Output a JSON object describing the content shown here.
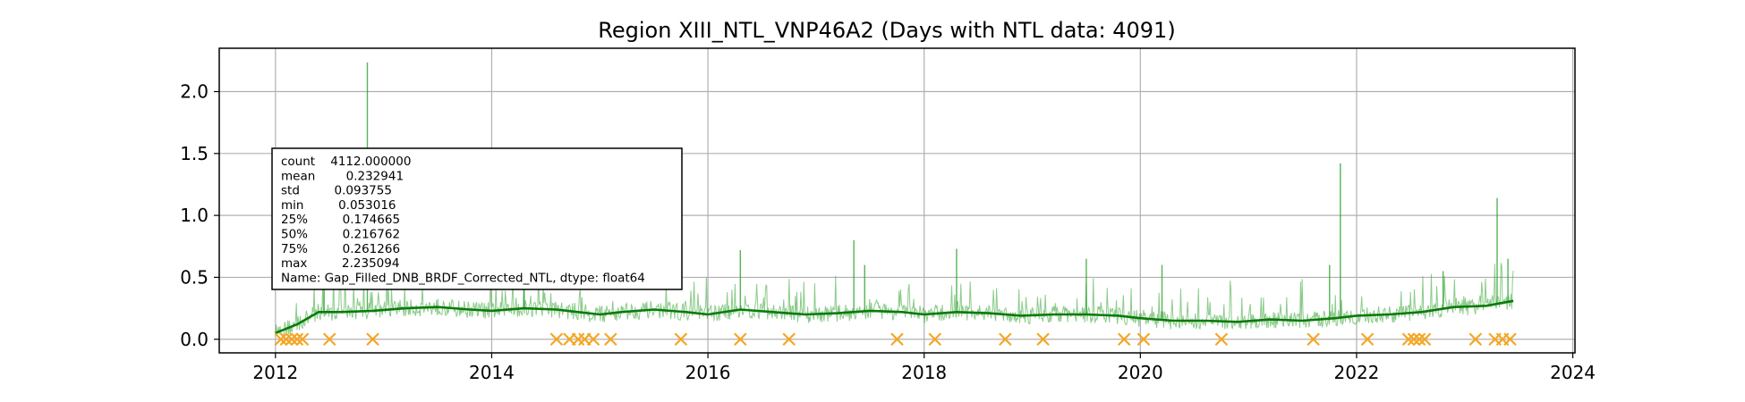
{
  "chart_data": {
    "type": "line",
    "title": "Region XIII_NTL_VNP46A2 (Days with NTL data: 4091)",
    "xlabel": "",
    "ylabel": "",
    "xlim": [
      2011.48,
      2024.02
    ],
    "ylim": [
      -0.11,
      2.35
    ],
    "x_ticks": [
      2012,
      2014,
      2016,
      2018,
      2020,
      2022,
      2024
    ],
    "y_ticks": [
      0.0,
      0.5,
      1.0,
      1.5,
      2.0
    ],
    "x_tick_labels": [
      "2012",
      "2014",
      "2016",
      "2018",
      "2020",
      "2022",
      "2024"
    ],
    "y_tick_labels": [
      "0.0",
      "0.5",
      "1.0",
      "1.5",
      "2.0"
    ],
    "grid": true,
    "colors": {
      "daily": "#2ca02c",
      "smoothed": "#0a7a0a",
      "gaps": "#f5a623"
    },
    "smoothed_trend": {
      "x": [
        2012.0,
        2012.2,
        2012.4,
        2012.6,
        2012.9,
        2013.2,
        2013.5,
        2013.8,
        2014.0,
        2014.3,
        2014.6,
        2014.8,
        2015.0,
        2015.2,
        2015.5,
        2015.8,
        2016.0,
        2016.3,
        2016.6,
        2016.9,
        2017.2,
        2017.5,
        2017.8,
        2018.0,
        2018.3,
        2018.6,
        2018.9,
        2019.2,
        2019.5,
        2019.8,
        2020.0,
        2020.3,
        2020.6,
        2020.9,
        2021.2,
        2021.5,
        2021.8,
        2022.0,
        2022.3,
        2022.6,
        2022.9,
        2023.2,
        2023.45
      ],
      "y": [
        0.05,
        0.12,
        0.22,
        0.22,
        0.23,
        0.25,
        0.26,
        0.24,
        0.23,
        0.25,
        0.24,
        0.22,
        0.2,
        0.22,
        0.24,
        0.22,
        0.2,
        0.24,
        0.22,
        0.2,
        0.21,
        0.23,
        0.22,
        0.2,
        0.22,
        0.21,
        0.19,
        0.2,
        0.2,
        0.19,
        0.17,
        0.15,
        0.15,
        0.14,
        0.16,
        0.15,
        0.17,
        0.19,
        0.2,
        0.22,
        0.26,
        0.27,
        0.31
      ]
    },
    "spikes": [
      {
        "x": 2012.85,
        "y": 2.235
      },
      {
        "x": 2012.45,
        "y": 0.85
      },
      {
        "x": 2014.3,
        "y": 0.8
      },
      {
        "x": 2016.3,
        "y": 0.72
      },
      {
        "x": 2017.35,
        "y": 0.8
      },
      {
        "x": 2017.45,
        "y": 0.6
      },
      {
        "x": 2018.3,
        "y": 0.73
      },
      {
        "x": 2019.5,
        "y": 0.65
      },
      {
        "x": 2020.2,
        "y": 0.6
      },
      {
        "x": 2021.75,
        "y": 0.6
      },
      {
        "x": 2021.85,
        "y": 1.42
      },
      {
        "x": 2023.3,
        "y": 1.14
      },
      {
        "x": 2023.4,
        "y": 0.65
      },
      {
        "x": 2022.8,
        "y": 0.55
      }
    ],
    "gap_days": [
      2012.05,
      2012.1,
      2012.15,
      2012.2,
      2012.25,
      2012.5,
      2012.9,
      2014.6,
      2014.72,
      2014.8,
      2014.86,
      2014.94,
      2015.1,
      2015.75,
      2016.3,
      2016.75,
      2017.75,
      2018.1,
      2018.75,
      2019.1,
      2019.85,
      2020.03,
      2020.75,
      2021.6,
      2022.1,
      2022.48,
      2022.53,
      2022.58,
      2022.63,
      2023.1,
      2023.28,
      2023.35,
      2023.42
    ],
    "stats_box": {
      "lines": [
        "count    4112.000000",
        "mean        0.232941",
        "std         0.093755",
        "min         0.053016",
        "25%         0.174665",
        "50%         0.216762",
        "75%         0.261266",
        "max         2.235094",
        "Name: Gap_Filled_DNB_BRDF_Corrected_NTL, dtype: float64"
      ]
    }
  }
}
